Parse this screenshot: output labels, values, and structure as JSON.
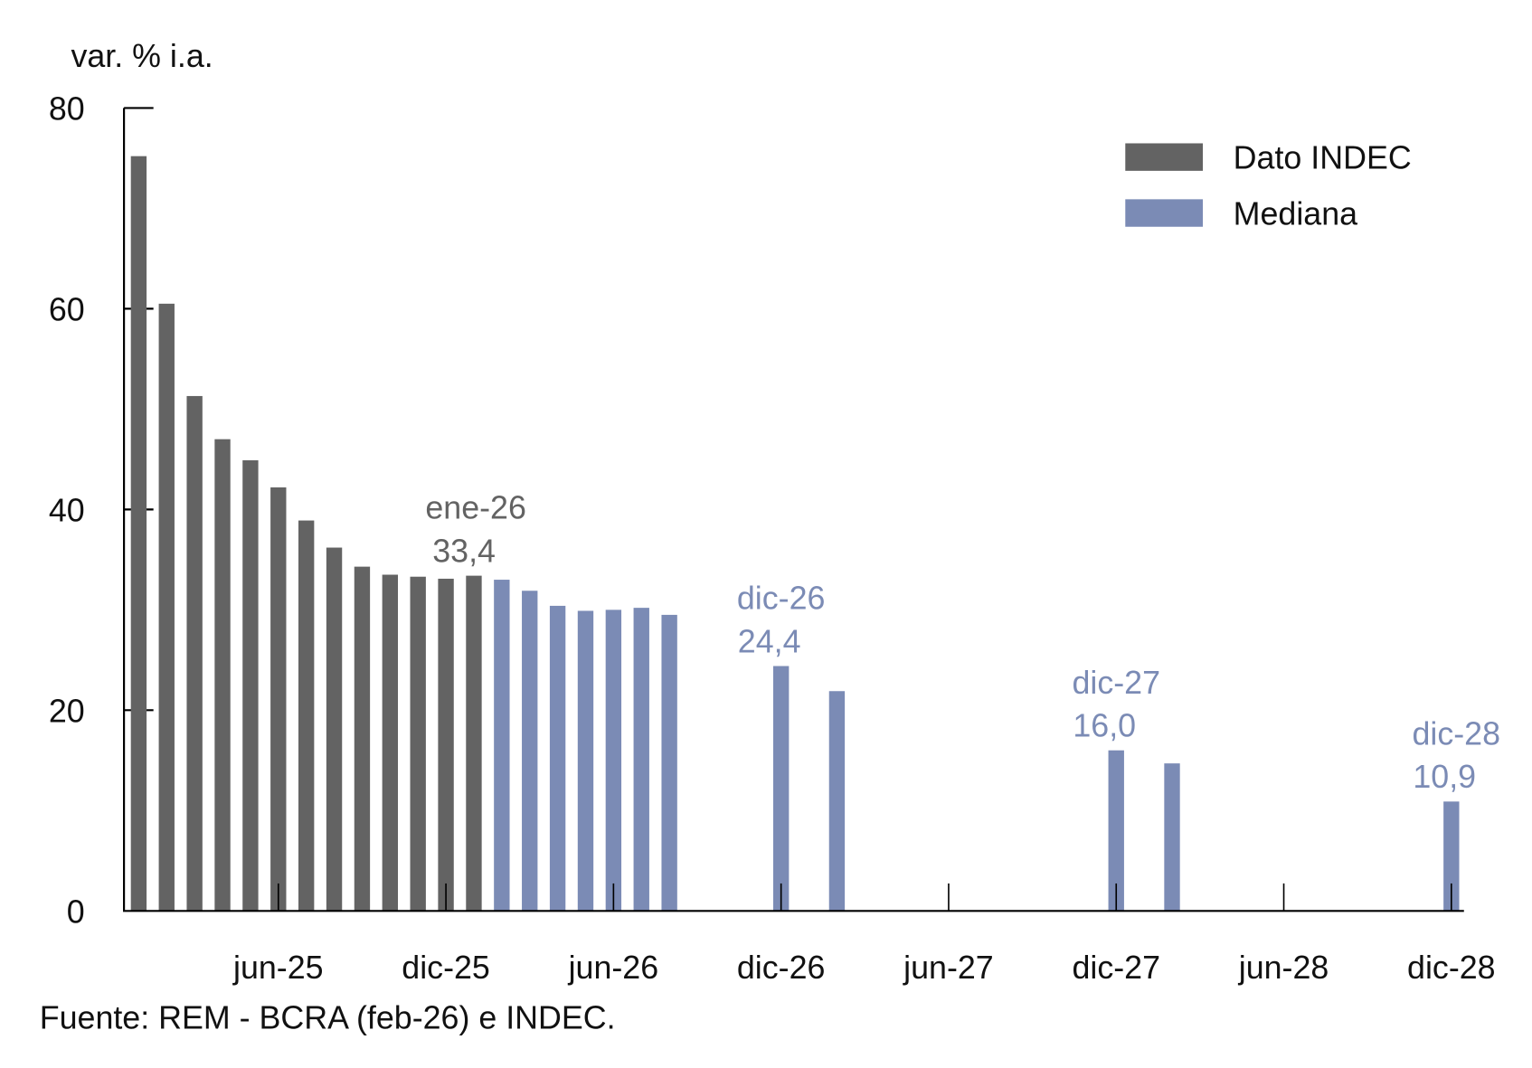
{
  "chart_data": {
    "type": "bar",
    "ylabel": "var. % i.a.",
    "ylim": [
      0,
      80
    ],
    "yticks": [
      "0",
      "20",
      "40",
      "60",
      "80"
    ],
    "x_range": [
      "ene-25",
      "dic-28"
    ],
    "xticks": [
      "jun-25",
      "dic-25",
      "jun-26",
      "dic-26",
      "jun-27",
      "dic-27",
      "jun-28",
      "dic-28"
    ],
    "grid": false,
    "legend_placement": "top-right",
    "series": [
      {
        "name": "Dato INDEC",
        "color": "#636363",
        "points": [
          {
            "x": "ene-25",
            "y": 75.2
          },
          {
            "x": "feb-25",
            "y": 60.5
          },
          {
            "x": "mar-25",
            "y": 51.3
          },
          {
            "x": "abr-25",
            "y": 47.0
          },
          {
            "x": "may-25",
            "y": 44.9
          },
          {
            "x": "jun-25",
            "y": 42.2
          },
          {
            "x": "jul-25",
            "y": 38.9
          },
          {
            "x": "ago-25",
            "y": 36.2
          },
          {
            "x": "sep-25",
            "y": 34.3
          },
          {
            "x": "oct-25",
            "y": 33.5
          },
          {
            "x": "nov-25",
            "y": 33.3
          },
          {
            "x": "dic-25",
            "y": 33.1
          },
          {
            "x": "ene-26",
            "y": 33.4
          }
        ]
      },
      {
        "name": "Mediana",
        "color": "#7b8bb5",
        "points": [
          {
            "x": "feb-26",
            "y": 33.0
          },
          {
            "x": "mar-26",
            "y": 31.9
          },
          {
            "x": "abr-26",
            "y": 30.4
          },
          {
            "x": "may-26",
            "y": 29.9
          },
          {
            "x": "jun-26",
            "y": 30.0
          },
          {
            "x": "jul-26",
            "y": 30.2
          },
          {
            "x": "ago-26",
            "y": 29.5
          },
          {
            "x": "dic-26",
            "y": 24.4
          },
          {
            "x": "feb-27",
            "y": 21.9
          },
          {
            "x": "dic-27",
            "y": 16.0
          },
          {
            "x": "feb-28",
            "y": 14.7
          },
          {
            "x": "dic-28",
            "y": 10.9
          }
        ]
      }
    ],
    "annotations": [
      {
        "x": "ene-26",
        "line1": "ene-26",
        "line2": "33,4",
        "color": "#636363"
      },
      {
        "x": "dic-26",
        "line1": "dic-26",
        "line2": "24,4",
        "color": "#7b8bb5"
      },
      {
        "x": "dic-27",
        "line1": "dic-27",
        "line2": "16,0",
        "color": "#7b8bb5"
      },
      {
        "x": "dic-28",
        "line1": "dic-28",
        "line2": "10,9",
        "color": "#7b8bb5"
      }
    ],
    "source": "Fuente: REM - BCRA (feb-26) e INDEC."
  }
}
